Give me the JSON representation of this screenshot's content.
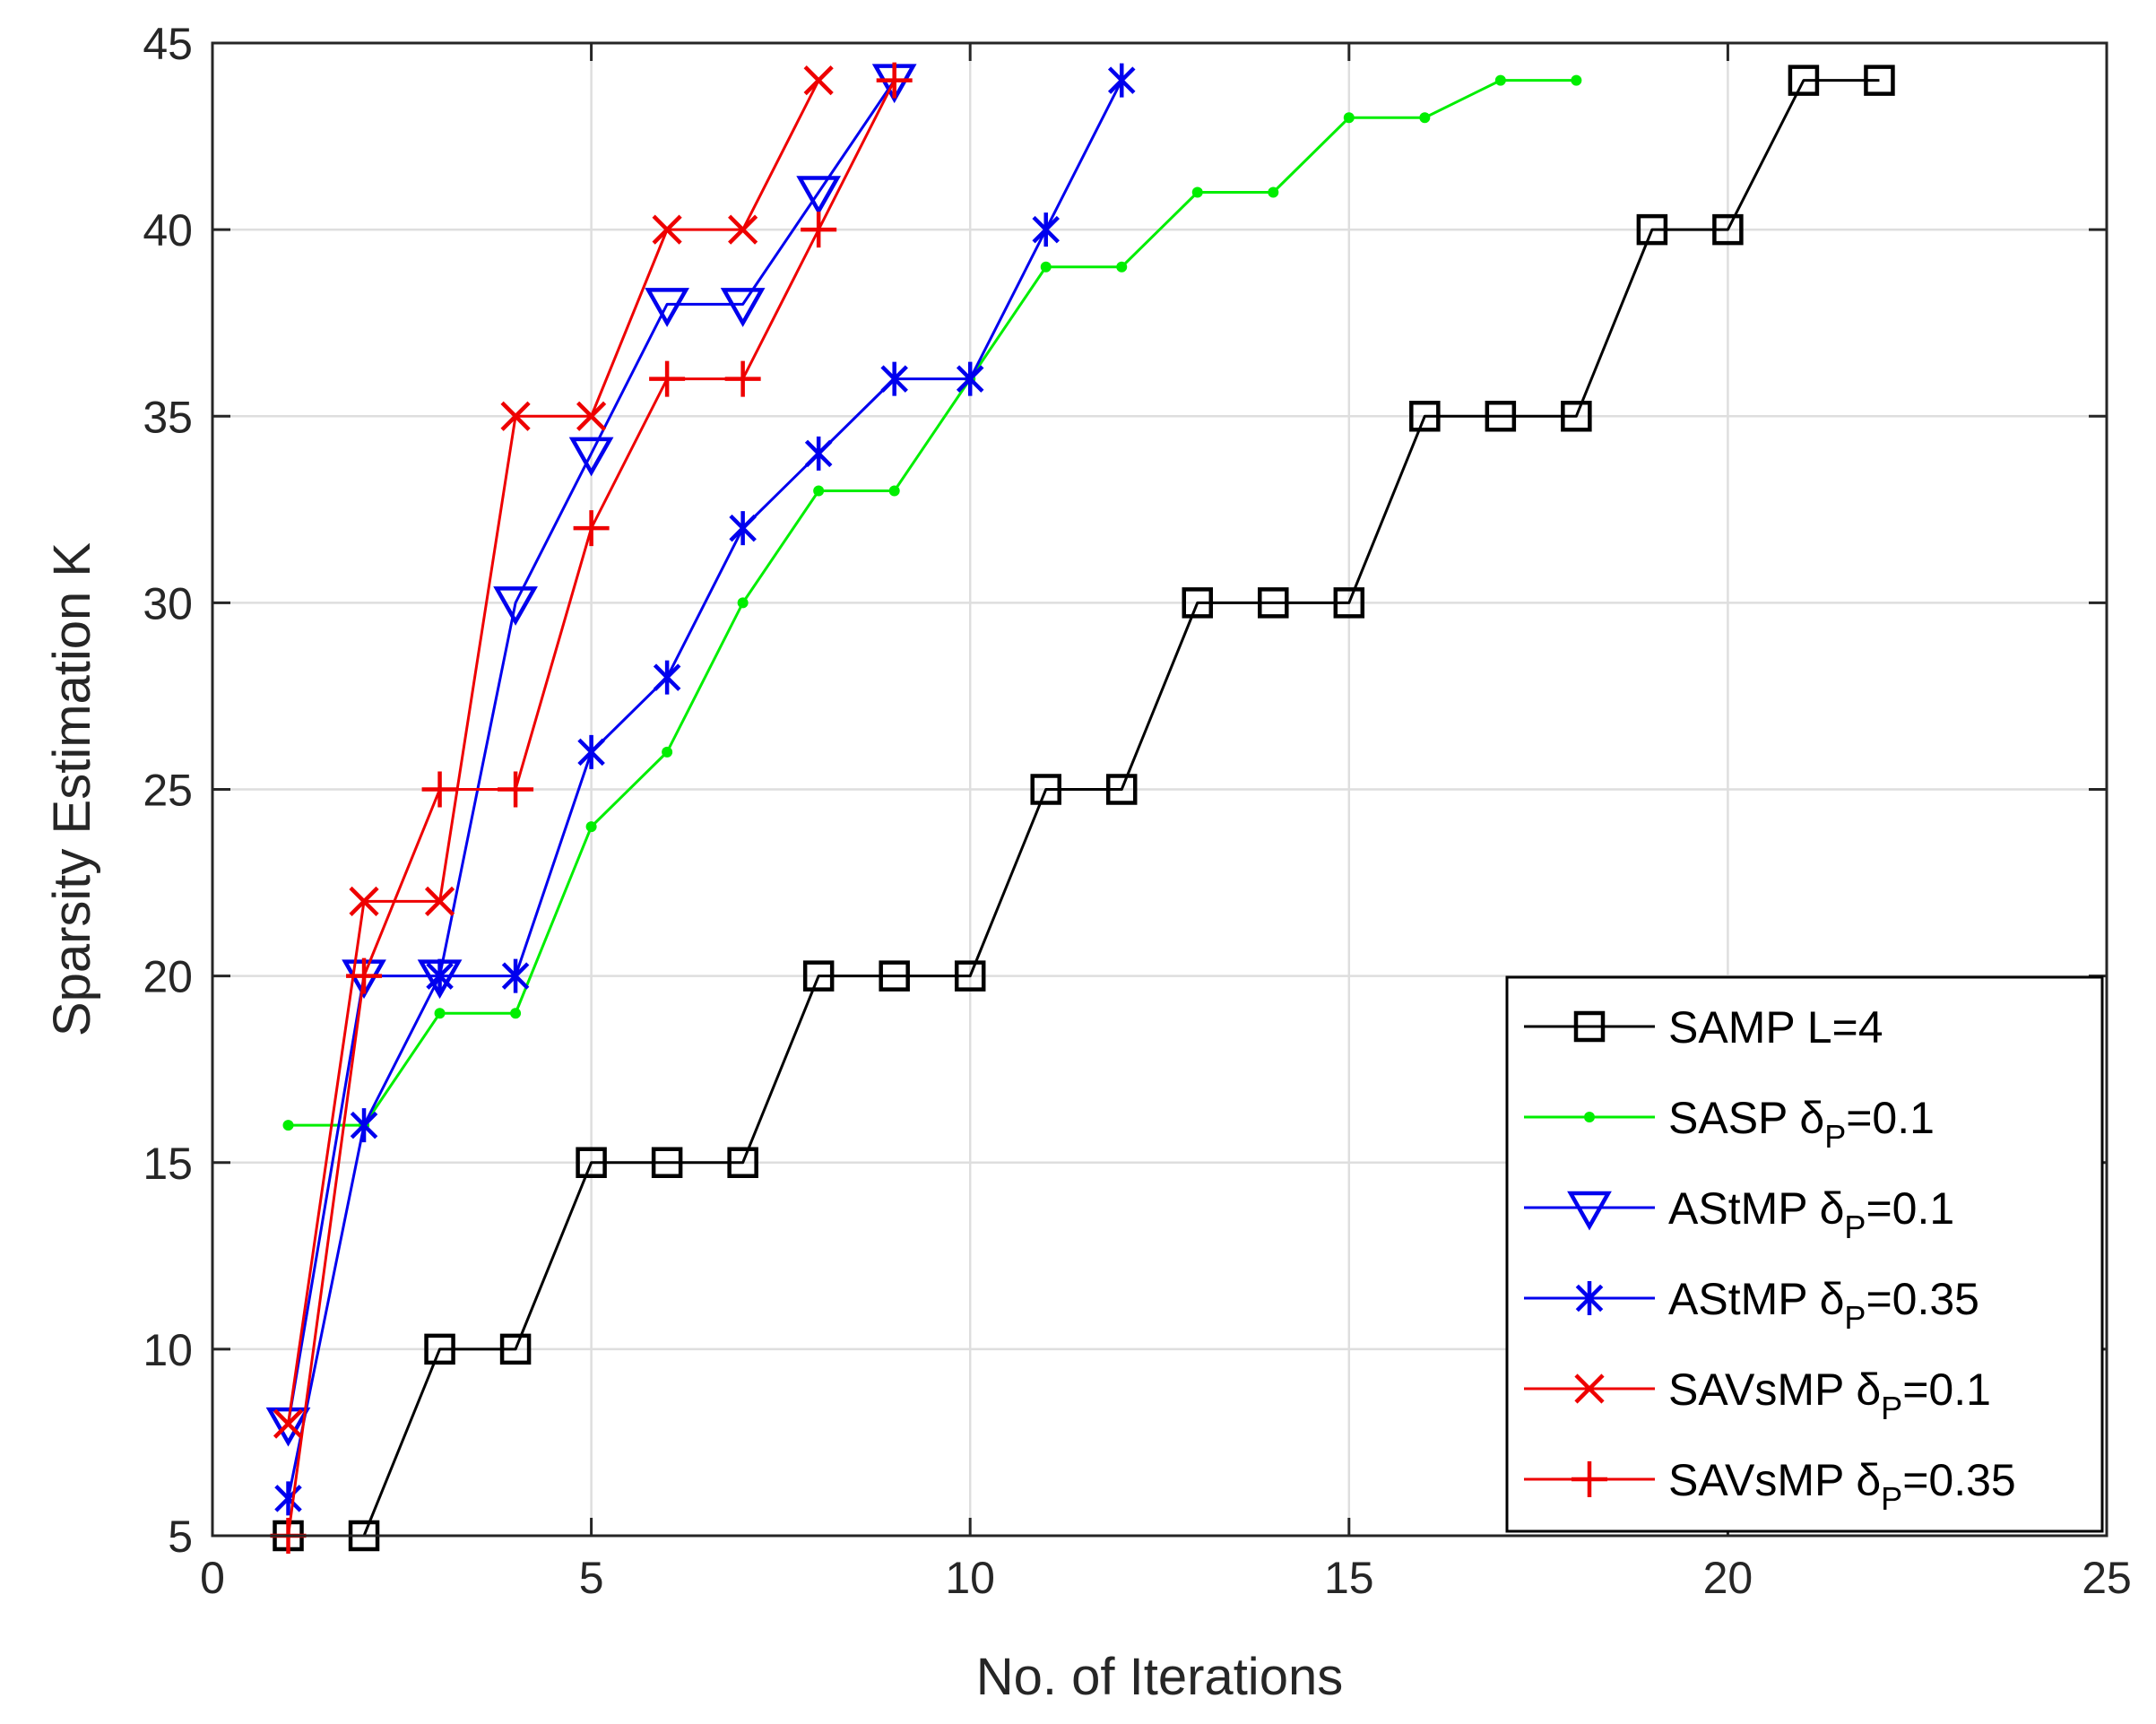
{
  "chart_data": {
    "type": "line",
    "title": "",
    "xlabel": "No. of Iterations",
    "ylabel": "Sparsity Estimation K",
    "xlim": [
      0,
      25
    ],
    "ylim": [
      5,
      45
    ],
    "xticks": [
      0,
      5,
      10,
      15,
      20,
      25
    ],
    "yticks": [
      5,
      10,
      15,
      20,
      25,
      30,
      35,
      40,
      45
    ],
    "xtick_labels": [
      "0",
      "5",
      "10",
      "15",
      "20",
      "25"
    ],
    "ytick_labels": [
      "5",
      "10",
      "15",
      "20",
      "25",
      "30",
      "35",
      "40",
      "45"
    ],
    "grid": true,
    "legend_position": "bottom-right",
    "series": [
      {
        "name": "SAMP L=4",
        "label_main": "SAMP L=4",
        "label_sub": "",
        "label_tail": "",
        "color": "#000000",
        "marker": "square",
        "x": [
          1,
          2,
          3,
          4,
          5,
          6,
          7,
          8,
          9,
          10,
          11,
          12,
          13,
          14,
          15,
          16,
          17,
          18,
          19,
          20,
          21,
          22
        ],
        "y": [
          5,
          5,
          10,
          10,
          15,
          15,
          15,
          20,
          20,
          20,
          25,
          25,
          30,
          30,
          30,
          35,
          35,
          35,
          40,
          40,
          44,
          44
        ]
      },
      {
        "name": "SASP δP=0.1",
        "label_main": "SASP δ",
        "label_sub": "P",
        "label_tail": "=0.1",
        "color": "#00ee00",
        "marker": "dot",
        "x": [
          1,
          2,
          3,
          4,
          5,
          6,
          7,
          8,
          9,
          10,
          11,
          12,
          13,
          14,
          15,
          16,
          17,
          18
        ],
        "y": [
          16,
          16,
          19,
          19,
          24,
          26,
          30,
          33,
          33,
          36,
          39,
          39,
          41,
          41,
          43,
          43,
          44,
          44
        ]
      },
      {
        "name": "AStMP δP=0.1",
        "label_main": "AStMP δ",
        "label_sub": "P",
        "label_tail": "=0.1",
        "color": "#0000ee",
        "marker": "triangle-down",
        "x": [
          1,
          2,
          3,
          4,
          5,
          6,
          7,
          8,
          9
        ],
        "y": [
          8,
          20,
          20,
          30,
          34,
          38,
          38,
          41,
          44
        ]
      },
      {
        "name": "AStMP δP=0.35",
        "label_main": "AStMP δ",
        "label_sub": "P",
        "label_tail": "=0.35",
        "color": "#0000ee",
        "marker": "asterisk",
        "x": [
          1,
          2,
          3,
          4,
          5,
          6,
          7,
          8,
          9,
          10,
          11,
          12
        ],
        "y": [
          6,
          16,
          20,
          20,
          26,
          28,
          32,
          34,
          36,
          36,
          40,
          44
        ]
      },
      {
        "name": "SAVsMP δP=0.1",
        "label_main": "SAVsMP δ",
        "label_sub": "P",
        "label_tail": "=0.1",
        "color": "#ee0000",
        "marker": "x",
        "x": [
          1,
          2,
          3,
          4,
          5,
          6,
          7,
          8
        ],
        "y": [
          8,
          22,
          22,
          35,
          35,
          40,
          40,
          44
        ]
      },
      {
        "name": "SAVsMP δP=0.35",
        "label_main": "SAVsMP δ",
        "label_sub": "P",
        "label_tail": "=0.35",
        "color": "#ee0000",
        "marker": "plus",
        "x": [
          1,
          2,
          3,
          4,
          5,
          6,
          7,
          8,
          9
        ],
        "y": [
          5,
          20,
          25,
          25,
          32,
          36,
          36,
          40,
          44
        ]
      }
    ]
  }
}
